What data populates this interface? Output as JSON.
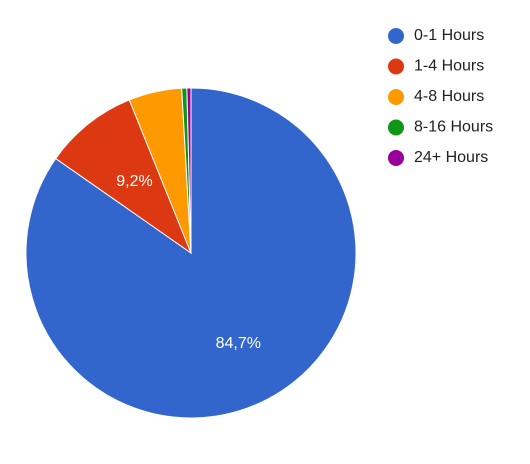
{
  "chart_data": {
    "type": "pie",
    "title": "",
    "legend_position": "right",
    "slices": [
      {
        "label": "0-1 Hours",
        "value": 84.7,
        "color": "#3366cc",
        "data_label": "84,7%"
      },
      {
        "label": "1-4 Hours",
        "value": 9.2,
        "color": "#dc3912",
        "data_label": "9,2%"
      },
      {
        "label": "4-8 Hours",
        "value": 5.2,
        "color": "#ff9900",
        "data_label": ""
      },
      {
        "label": "8-16 Hours",
        "value": 0.5,
        "color": "#109618",
        "data_label": ""
      },
      {
        "label": "24+ Hours",
        "value": 0.4,
        "color": "#990099",
        "data_label": ""
      }
    ]
  }
}
